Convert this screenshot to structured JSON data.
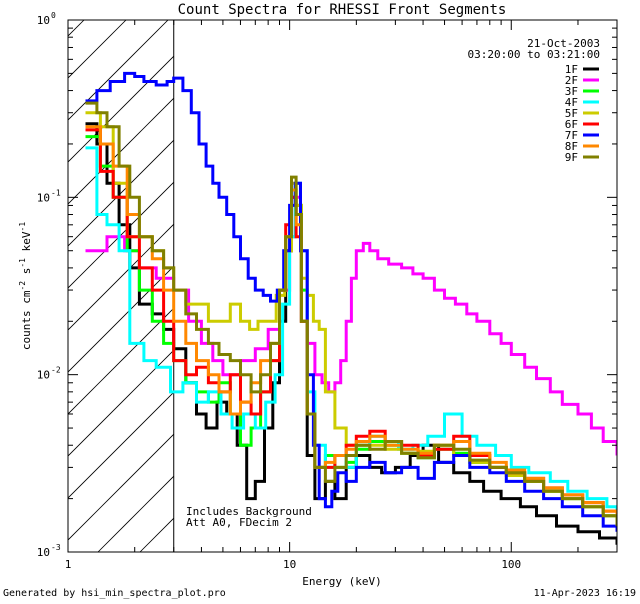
{
  "chart_data": {
    "type": "line",
    "title": "Count Spectra for RHESSI Front Segments",
    "xlabel": "Energy (keV)",
    "ylabel": "counts cm",
    "ylabel_sup1": "-2",
    "ylabel_mid": " s",
    "ylabel_sup2": "-1",
    "ylabel_mid2": " keV",
    "ylabel_sup3": "-1",
    "x_scale": "log",
    "y_scale": "log",
    "xlim": [
      1,
      300
    ],
    "ylim": [
      0.001,
      1
    ],
    "x_tick_labels": [
      {
        "value": 1,
        "label": "1"
      },
      {
        "value": 10,
        "label": "10"
      },
      {
        "value": 100,
        "label": "100"
      }
    ],
    "y_tick_labels": [
      {
        "value": 1,
        "base": "10",
        "exp": "0"
      },
      {
        "value": 0.1,
        "base": "10",
        "exp": "-1"
      },
      {
        "value": 0.01,
        "base": "10",
        "exp": "-2"
      },
      {
        "value": 0.001,
        "base": "10",
        "exp": "-3"
      }
    ],
    "date": "21-Oct-2003",
    "time_range": "03:20:00 to 03:21:00",
    "excluded_region": {
      "xmin": 1,
      "xmax": 3
    },
    "annotation_line1": "Includes Background",
    "annotation_line2": "Att A0, FDecim 2",
    "footer_left": "Generated by hsi_min_spectra_plot.pro",
    "footer_right": "11-Apr-2023 16:19",
    "series": [
      {
        "name": "1F",
        "color": "#000000",
        "x": [
          1.2,
          1.35,
          1.5,
          1.7,
          1.9,
          2.1,
          2.4,
          2.7,
          3.0,
          3.4,
          3.8,
          4.2,
          4.7,
          5.2,
          5.8,
          6.4,
          7.0,
          7.7,
          8.4,
          9.0,
          9.6,
          10.2,
          10.7,
          11.3,
          12.0,
          13.0,
          14.5,
          16.0,
          18.0,
          20.0,
          23.0,
          26.0,
          30.0,
          35.0,
          40.0,
          47.0,
          55.0,
          65.0,
          75.0,
          90.0,
          110.0,
          130.0,
          160.0,
          200.0,
          250.0,
          300.0
        ],
        "values": [
          0.26,
          0.2,
          0.12,
          0.07,
          0.04,
          0.025,
          0.022,
          0.018,
          0.014,
          0.009,
          0.006,
          0.005,
          0.007,
          0.006,
          0.004,
          0.002,
          0.0025,
          0.005,
          0.009,
          0.02,
          0.05,
          0.1,
          0.08,
          0.02,
          0.0035,
          0.002,
          0.0025,
          0.002,
          0.003,
          0.0035,
          0.003,
          0.0028,
          0.003,
          0.0035,
          0.004,
          0.0032,
          0.0028,
          0.0025,
          0.0022,
          0.002,
          0.0018,
          0.0016,
          0.0014,
          0.0013,
          0.0012,
          0.0011
        ]
      },
      {
        "name": "2F",
        "color": "#ff00ff",
        "x": [
          1.2,
          1.5,
          1.8,
          2.1,
          2.5,
          3.0,
          3.5,
          4.0,
          4.5,
          5.0,
          6.0,
          7.0,
          8.0,
          9.0,
          10.0,
          10.6,
          11.2,
          12.0,
          13.0,
          14.0,
          15.0,
          16.0,
          17.0,
          18.0,
          19.0,
          20.0,
          21.5,
          23.0,
          25.0,
          28.0,
          32.0,
          36.0,
          40.0,
          45.0,
          50.0,
          56.0,
          63.0,
          70.0,
          80.0,
          90.0,
          100.0,
          115.0,
          130.0,
          150.0,
          170.0,
          200.0,
          230.0,
          260.0,
          300.0
        ],
        "values": [
          0.05,
          0.06,
          0.05,
          0.04,
          0.035,
          0.03,
          0.02,
          0.015,
          0.012,
          0.01,
          0.012,
          0.014,
          0.018,
          0.03,
          0.06,
          0.1,
          0.05,
          0.015,
          0.01,
          0.009,
          0.008,
          0.009,
          0.012,
          0.02,
          0.035,
          0.05,
          0.055,
          0.05,
          0.045,
          0.042,
          0.04,
          0.037,
          0.035,
          0.03,
          0.027,
          0.025,
          0.022,
          0.02,
          0.017,
          0.015,
          0.013,
          0.011,
          0.0095,
          0.008,
          0.0068,
          0.006,
          0.005,
          0.0042,
          0.0035
        ]
      },
      {
        "name": "3F",
        "color": "#00ff00",
        "x": [
          1.2,
          1.4,
          1.6,
          1.85,
          2.1,
          2.4,
          2.7,
          3.0,
          3.4,
          3.8,
          4.3,
          4.8,
          5.4,
          6.0,
          6.7,
          7.4,
          8.2,
          9.0,
          9.6,
          10.2,
          10.7,
          11.3,
          12.0,
          13.0,
          14.5,
          16.0,
          18.0,
          20.0,
          23.0,
          27.0,
          32.0,
          38.0,
          45.0,
          55.0,
          65.0,
          80.0,
          95.0,
          115.0,
          140.0,
          170.0,
          210.0,
          260.0,
          300.0
        ],
        "values": [
          0.22,
          0.15,
          0.1,
          0.05,
          0.03,
          0.02,
          0.015,
          0.012,
          0.009,
          0.008,
          0.007,
          0.009,
          0.006,
          0.004,
          0.005,
          0.008,
          0.012,
          0.03,
          0.06,
          0.11,
          0.09,
          0.03,
          0.006,
          0.003,
          0.0035,
          0.003,
          0.0032,
          0.0038,
          0.0042,
          0.004,
          0.0036,
          0.0034,
          0.0038,
          0.0036,
          0.0032,
          0.003,
          0.0028,
          0.0025,
          0.0022,
          0.002,
          0.0018,
          0.0016,
          0.0015
        ]
      },
      {
        "name": "4F",
        "color": "#00ffff",
        "x": [
          1.2,
          1.35,
          1.5,
          1.7,
          1.9,
          2.2,
          2.5,
          2.9,
          3.3,
          3.8,
          4.3,
          4.9,
          5.5,
          6.2,
          7.0,
          7.8,
          8.6,
          9.3,
          10.0,
          10.6,
          11.2,
          12.0,
          13.0,
          14.5,
          16.0,
          18.0,
          20.0,
          23.0,
          27.0,
          31.0,
          36.0,
          42.0,
          50.0,
          60.0,
          70.0,
          85.0,
          100.0,
          120.0,
          150.0,
          180.0,
          220.0,
          270.0,
          300.0
        ],
        "values": [
          0.19,
          0.08,
          0.07,
          0.05,
          0.015,
          0.012,
          0.011,
          0.008,
          0.009,
          0.007,
          0.008,
          0.006,
          0.005,
          0.006,
          0.005,
          0.007,
          0.01,
          0.025,
          0.06,
          0.12,
          0.05,
          0.008,
          0.004,
          0.003,
          0.0035,
          0.003,
          0.004,
          0.0045,
          0.0042,
          0.0038,
          0.004,
          0.0045,
          0.006,
          0.0045,
          0.004,
          0.0035,
          0.003,
          0.0028,
          0.0025,
          0.0022,
          0.002,
          0.0018,
          0.0016
        ]
      },
      {
        "name": "5F",
        "color": "#cccc00",
        "x": [
          1.2,
          1.4,
          1.6,
          1.85,
          2.1,
          2.4,
          2.7,
          3.0,
          3.4,
          3.8,
          4.3,
          4.8,
          5.4,
          6.0,
          6.6,
          7.2,
          7.9,
          8.7,
          9.5,
          10.2,
          10.7,
          11.3,
          12.0,
          12.8,
          13.6,
          14.5,
          16.0,
          18.0,
          20.0,
          23.0,
          27.0,
          32.0,
          38.0,
          45.0,
          55.0,
          65.0,
          80.0,
          95.0,
          115.0,
          140.0,
          170.0,
          210.0,
          260.0,
          300.0
        ],
        "values": [
          0.3,
          0.25,
          0.12,
          0.06,
          0.06,
          0.05,
          0.04,
          0.03,
          0.025,
          0.025,
          0.02,
          0.02,
          0.025,
          0.02,
          0.018,
          0.02,
          0.02,
          0.028,
          0.05,
          0.12,
          0.09,
          0.035,
          0.028,
          0.02,
          0.018,
          0.008,
          0.005,
          0.004,
          0.004,
          0.004,
          0.0038,
          0.0036,
          0.0037,
          0.004,
          0.0035,
          0.0032,
          0.003,
          0.0027,
          0.0025,
          0.0022,
          0.002,
          0.0018,
          0.0016,
          0.0015
        ]
      },
      {
        "name": "6F",
        "color": "#ff0000",
        "x": [
          1.2,
          1.4,
          1.6,
          1.85,
          2.1,
          2.4,
          2.7,
          3.0,
          3.4,
          3.8,
          4.3,
          4.8,
          5.4,
          6.0,
          6.7,
          7.4,
          8.2,
          9.0,
          9.6,
          10.2,
          10.7,
          11.3,
          12.0,
          13.0,
          14.5,
          16.0,
          18.0,
          20.0,
          23.0,
          27.0,
          32.0,
          38.0,
          45.0,
          55.0,
          65.0,
          80.0,
          95.0,
          115.0,
          140.0,
          170.0,
          210.0,
          260.0,
          300.0
        ],
        "values": [
          0.24,
          0.14,
          0.1,
          0.06,
          0.04,
          0.03,
          0.02,
          0.012,
          0.01,
          0.011,
          0.009,
          0.008,
          0.01,
          0.007,
          0.006,
          0.008,
          0.012,
          0.03,
          0.07,
          0.1,
          0.06,
          0.02,
          0.006,
          0.003,
          0.003,
          0.0035,
          0.004,
          0.0045,
          0.0048,
          0.0042,
          0.004,
          0.0035,
          0.0038,
          0.0045,
          0.0035,
          0.003,
          0.0028,
          0.0026,
          0.0023,
          0.0021,
          0.0019,
          0.0017,
          0.0015
        ]
      },
      {
        "name": "7F",
        "color": "#0000ff",
        "x": [
          1.2,
          1.35,
          1.55,
          1.8,
          2.0,
          2.2,
          2.5,
          2.8,
          3.0,
          3.3,
          3.6,
          3.9,
          4.2,
          4.5,
          4.8,
          5.2,
          5.6,
          6.0,
          6.5,
          7.0,
          7.6,
          8.2,
          8.8,
          9.4,
          10.0,
          10.6,
          11.2,
          12.0,
          12.8,
          13.6,
          14.5,
          15.5,
          16.5,
          18.0,
          20.0,
          23.0,
          27.0,
          32.0,
          38.0,
          45.0,
          55.0,
          65.0,
          80.0,
          95.0,
          115.0,
          140.0,
          170.0,
          210.0,
          260.0,
          300.0
        ],
        "values": [
          0.35,
          0.4,
          0.45,
          0.5,
          0.48,
          0.45,
          0.43,
          0.45,
          0.47,
          0.4,
          0.3,
          0.2,
          0.15,
          0.12,
          0.1,
          0.08,
          0.06,
          0.045,
          0.035,
          0.03,
          0.028,
          0.026,
          0.03,
          0.05,
          0.09,
          0.12,
          0.05,
          0.01,
          0.004,
          0.002,
          0.0018,
          0.0022,
          0.0028,
          0.0025,
          0.003,
          0.0032,
          0.0028,
          0.003,
          0.0026,
          0.0032,
          0.0035,
          0.003,
          0.0028,
          0.0025,
          0.0022,
          0.002,
          0.0018,
          0.0016,
          0.0014,
          0.0013
        ]
      },
      {
        "name": "8F",
        "color": "#ff8800",
        "x": [
          1.2,
          1.4,
          1.6,
          1.85,
          2.1,
          2.4,
          2.7,
          3.0,
          3.4,
          3.8,
          4.3,
          4.8,
          5.4,
          6.0,
          6.7,
          7.4,
          8.2,
          9.0,
          9.6,
          10.2,
          10.7,
          11.3,
          12.0,
          13.0,
          14.5,
          16.0,
          18.0,
          20.0,
          23.0,
          27.0,
          32.0,
          38.0,
          45.0,
          55.0,
          65.0,
          80.0,
          95.0,
          115.0,
          140.0,
          170.0,
          210.0,
          260.0,
          300.0
        ],
        "values": [
          0.25,
          0.2,
          0.15,
          0.08,
          0.06,
          0.045,
          0.03,
          0.02,
          0.015,
          0.012,
          0.01,
          0.008,
          0.006,
          0.007,
          0.009,
          0.012,
          0.015,
          0.03,
          0.06,
          0.11,
          0.07,
          0.02,
          0.006,
          0.003,
          0.0032,
          0.0035,
          0.0038,
          0.0042,
          0.0045,
          0.004,
          0.0038,
          0.0036,
          0.004,
          0.0042,
          0.0036,
          0.0032,
          0.0029,
          0.0026,
          0.0023,
          0.0021,
          0.0019,
          0.0017,
          0.0015
        ]
      },
      {
        "name": "9F",
        "color": "#808000",
        "x": [
          1.2,
          1.35,
          1.5,
          1.7,
          1.9,
          2.1,
          2.4,
          2.7,
          3.0,
          3.4,
          3.8,
          4.3,
          4.8,
          5.4,
          6.0,
          6.7,
          7.4,
          8.2,
          9.0,
          9.6,
          10.2,
          10.7,
          11.3,
          12.0,
          13.0,
          14.5,
          16.0,
          18.0,
          20.0,
          23.0,
          27.0,
          32.0,
          38.0,
          45.0,
          55.0,
          65.0,
          80.0,
          95.0,
          115.0,
          140.0,
          170.0,
          210.0,
          260.0,
          300.0
        ],
        "values": [
          0.34,
          0.3,
          0.25,
          0.15,
          0.1,
          0.06,
          0.05,
          0.04,
          0.03,
          0.022,
          0.018,
          0.015,
          0.013,
          0.012,
          0.01,
          0.008,
          0.01,
          0.015,
          0.03,
          0.06,
          0.13,
          0.08,
          0.02,
          0.006,
          0.003,
          0.0025,
          0.003,
          0.0035,
          0.004,
          0.0038,
          0.0042,
          0.0036,
          0.0034,
          0.004,
          0.0038,
          0.0033,
          0.003,
          0.0028,
          0.0025,
          0.0022,
          0.002,
          0.0018,
          0.0016,
          0.0014
        ]
      }
    ]
  }
}
